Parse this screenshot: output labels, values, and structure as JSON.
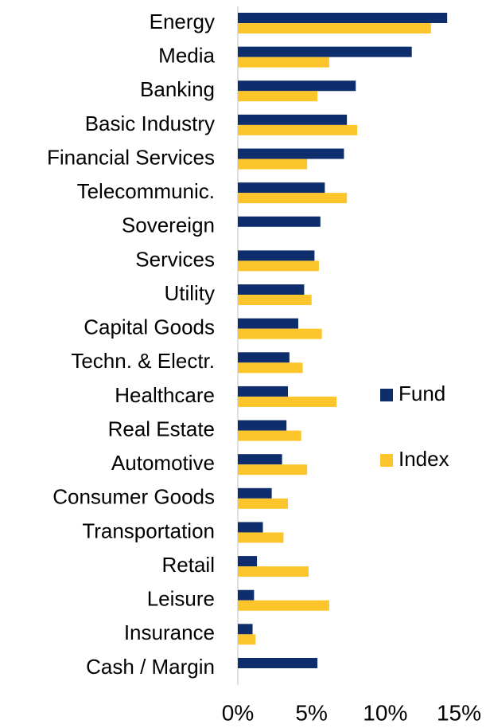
{
  "chart_data": {
    "type": "bar",
    "orientation": "horizontal",
    "categories": [
      "Energy",
      "Media",
      "Banking",
      "Basic Industry",
      "Financial Services",
      "Telecommunic.",
      "Sovereign",
      "Services",
      "Utility",
      "Capital Goods",
      "Techn. & Electr.",
      "Healthcare",
      "Real Estate",
      "Automotive",
      "Consumer Goods",
      "Transportation",
      "Retail",
      "Leisure",
      "Insurance",
      "Cash / Margin"
    ],
    "series": [
      {
        "name": "Fund",
        "color": "#0d2d6c",
        "values": [
          14.2,
          11.8,
          8.0,
          7.4,
          7.2,
          5.9,
          5.6,
          5.2,
          4.5,
          4.1,
          3.5,
          3.4,
          3.3,
          3.0,
          2.3,
          1.7,
          1.3,
          1.1,
          1.0,
          5.4
        ]
      },
      {
        "name": "Index",
        "color": "#fcc52c",
        "values": [
          13.1,
          6.2,
          5.4,
          8.1,
          4.7,
          7.4,
          null,
          5.5,
          5.0,
          5.7,
          4.4,
          6.7,
          4.3,
          4.7,
          3.4,
          3.1,
          4.8,
          6.2,
          1.2,
          null
        ]
      }
    ],
    "xlim": [
      0,
      15
    ],
    "xticks": [
      {
        "value": 0,
        "label": "0%"
      },
      {
        "value": 5,
        "label": "5%"
      },
      {
        "value": 10,
        "label": "10%"
      },
      {
        "value": 15,
        "label": "15%"
      }
    ],
    "legend": "right"
  }
}
